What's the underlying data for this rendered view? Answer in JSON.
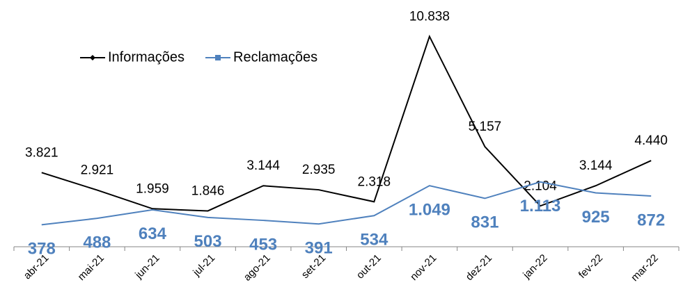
{
  "chart_data": {
    "type": "line",
    "categories": [
      "abr-21",
      "mai-21",
      "jun-21",
      "jul-21",
      "ago-21",
      "set-21",
      "out-21",
      "nov-21",
      "dez-21",
      "jan-22",
      "fev-22",
      "mar-22"
    ],
    "series": [
      {
        "name": "Informações",
        "color": "#000000",
        "axis": "y",
        "values": [
          3821,
          2921,
          1959,
          1846,
          3144,
          2935,
          2318,
          10838,
          5157,
          2104,
          3144,
          4440
        ],
        "value_labels": [
          "3.821",
          "2.921",
          "1.959",
          "1.846",
          "3.144",
          "2.935",
          "2.318",
          "10.838",
          "5.157",
          "2.104",
          "3.144",
          "4.440"
        ]
      },
      {
        "name": "Reclamações",
        "color": "#4f81bd",
        "axis": "y2",
        "values": [
          378,
          488,
          634,
          503,
          453,
          391,
          534,
          1049,
          831,
          1113,
          925,
          872
        ],
        "value_labels": [
          "378",
          "488",
          "634",
          "503",
          "453",
          "391",
          "534",
          "1.049",
          "831",
          "1.113",
          "925",
          "872"
        ]
      }
    ],
    "ylim": [
      0,
      12000
    ],
    "y2lim": [
      0,
      4000
    ],
    "legend": "top-left"
  }
}
